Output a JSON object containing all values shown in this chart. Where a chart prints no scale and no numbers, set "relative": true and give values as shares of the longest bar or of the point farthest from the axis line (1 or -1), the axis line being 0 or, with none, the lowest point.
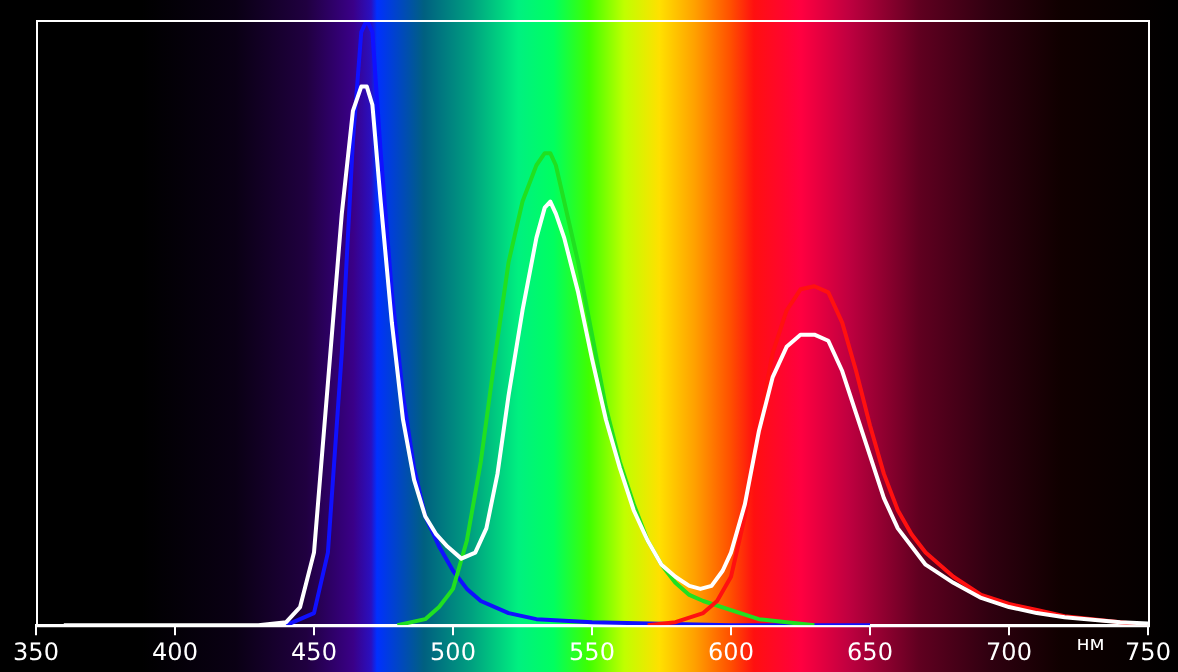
{
  "chart_data": {
    "type": "line",
    "relative": true,
    "xlabel": "нм",
    "xlim": [
      350,
      750
    ],
    "xticks": [
      350,
      400,
      450,
      500,
      550,
      600,
      650,
      700,
      750
    ],
    "grid": false,
    "legend": false,
    "marker": "none",
    "line_style": "solid",
    "tick_labels": "x",
    "series": [
      {
        "color": "#1010ff",
        "x": [
          440,
          450,
          455,
          460,
          464,
          467,
          469,
          471,
          474,
          478,
          482,
          486,
          490,
          495,
          500,
          505,
          510,
          520,
          530,
          550,
          600,
          650
        ],
        "values": [
          0,
          0.02,
          0.12,
          0.45,
          0.8,
          0.98,
          1.0,
          0.98,
          0.78,
          0.55,
          0.38,
          0.26,
          0.18,
          0.13,
          0.09,
          0.06,
          0.04,
          0.02,
          0.01,
          0.005,
          0,
          0
        ]
      },
      {
        "color": "#20e020",
        "x": [
          480,
          490,
          495,
          500,
          505,
          510,
          515,
          520,
          525,
          530,
          533,
          535,
          537,
          540,
          545,
          550,
          555,
          560,
          565,
          570,
          575,
          580,
          585,
          590,
          600,
          610,
          620,
          630
        ],
        "values": [
          0,
          0.01,
          0.03,
          0.06,
          0.14,
          0.27,
          0.44,
          0.6,
          0.7,
          0.76,
          0.78,
          0.78,
          0.76,
          0.7,
          0.6,
          0.48,
          0.36,
          0.27,
          0.2,
          0.14,
          0.1,
          0.07,
          0.05,
          0.04,
          0.025,
          0.01,
          0.005,
          0
        ]
      },
      {
        "color": "#ff1010",
        "x": [
          570,
          580,
          590,
          595,
          600,
          605,
          610,
          615,
          620,
          625,
          630,
          635,
          640,
          645,
          650,
          655,
          660,
          665,
          670,
          680,
          690,
          700,
          710,
          720,
          740,
          750
        ],
        "values": [
          0,
          0.005,
          0.02,
          0.04,
          0.08,
          0.18,
          0.33,
          0.45,
          0.52,
          0.555,
          0.56,
          0.55,
          0.5,
          0.42,
          0.33,
          0.25,
          0.19,
          0.15,
          0.12,
          0.08,
          0.05,
          0.035,
          0.025,
          0.015,
          0.005,
          0
        ]
      },
      {
        "color": "#ffffff",
        "x": [
          360,
          430,
          440,
          445,
          450,
          455,
          460,
          464,
          467,
          469,
          471,
          474,
          478,
          482,
          486,
          490,
          494,
          498,
          503,
          508,
          512,
          516,
          520,
          525,
          530,
          533,
          535,
          537,
          540,
          545,
          550,
          555,
          560,
          565,
          570,
          575,
          580,
          585,
          589,
          593,
          597,
          600,
          605,
          610,
          615,
          620,
          625,
          630,
          635,
          640,
          645,
          650,
          655,
          660,
          665,
          670,
          680,
          690,
          700,
          710,
          720,
          740,
          750
        ],
        "values": [
          0,
          0,
          0.005,
          0.03,
          0.12,
          0.4,
          0.68,
          0.85,
          0.89,
          0.89,
          0.86,
          0.7,
          0.5,
          0.34,
          0.24,
          0.18,
          0.15,
          0.13,
          0.11,
          0.12,
          0.16,
          0.25,
          0.38,
          0.52,
          0.64,
          0.69,
          0.7,
          0.68,
          0.64,
          0.55,
          0.44,
          0.34,
          0.26,
          0.19,
          0.14,
          0.1,
          0.08,
          0.065,
          0.06,
          0.065,
          0.09,
          0.12,
          0.2,
          0.32,
          0.41,
          0.46,
          0.48,
          0.48,
          0.47,
          0.42,
          0.35,
          0.28,
          0.21,
          0.16,
          0.13,
          0.1,
          0.07,
          0.045,
          0.03,
          0.02,
          0.013,
          0.005,
          0.003
        ]
      }
    ]
  }
}
